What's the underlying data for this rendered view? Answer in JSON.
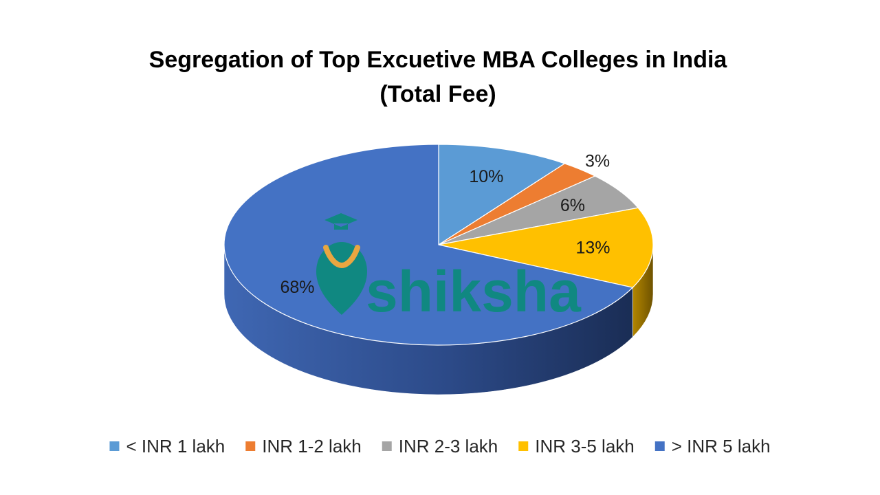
{
  "chart_data": {
    "type": "pie",
    "title": "Segregation of Top Excuetive MBA Colleges in India",
    "subtitle": "(Total Fee)",
    "categories": [
      "< INR 1 lakh",
      "INR 1-2 lakh",
      "INR 2-3 lakh",
      "INR 3-5 lakh",
      "> INR 5 lakh"
    ],
    "values": [
      10,
      3,
      6,
      13,
      68
    ],
    "value_labels": [
      "10%",
      "3%",
      "6%",
      "13%",
      "68%"
    ],
    "colors": [
      "#5B9BD5",
      "#ED7D31",
      "#A5A5A5",
      "#FFC000",
      "#4472C4"
    ],
    "legend_position": "bottom",
    "style": "3d-pie"
  },
  "watermark": {
    "text": "shiksha",
    "color": "#0E8A7E",
    "accent": "#F2A93B"
  }
}
